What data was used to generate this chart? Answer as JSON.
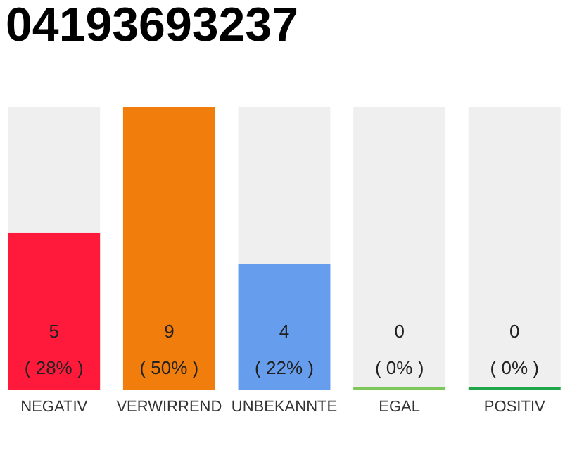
{
  "chart_data": {
    "type": "bar",
    "title": "04193693237",
    "categories": [
      "NEGATIV",
      "VERWIRREND",
      "UNBEKANNTE",
      "EGAL",
      "POSITIV"
    ],
    "stacked": true,
    "series": [
      {
        "colors": [
          "#ff1a3c",
          "#f07d0c",
          "#679ded",
          "#7dc85a",
          "#22a64a"
        ],
        "values": [
          5,
          9,
          4,
          0,
          0
        ],
        "value_labels": [
          "5\n( 28% )",
          "9\n( 50% )",
          "4\n( 22% )",
          "0\n( 0% )",
          "0\n( 0% )"
        ]
      },
      {
        "color": "#efefef",
        "values": [
          4,
          0,
          5,
          9,
          9
        ]
      }
    ]
  }
}
